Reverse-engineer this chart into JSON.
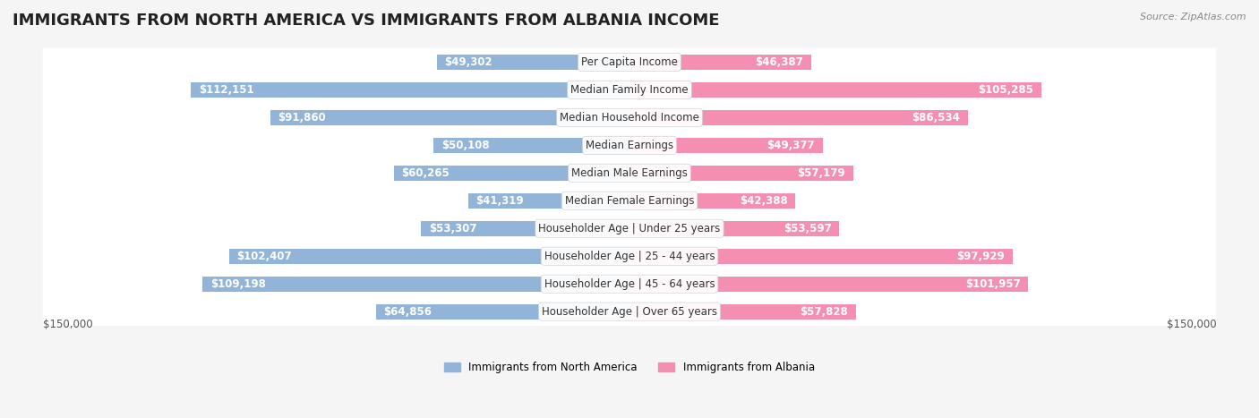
{
  "title": "IMMIGRANTS FROM NORTH AMERICA VS IMMIGRANTS FROM ALBANIA INCOME",
  "source": "Source: ZipAtlas.com",
  "categories": [
    "Per Capita Income",
    "Median Family Income",
    "Median Household Income",
    "Median Earnings",
    "Median Male Earnings",
    "Median Female Earnings",
    "Householder Age | Under 25 years",
    "Householder Age | 25 - 44 years",
    "Householder Age | 45 - 64 years",
    "Householder Age | Over 65 years"
  ],
  "left_values": [
    49302,
    112151,
    91860,
    50108,
    60265,
    41319,
    53307,
    102407,
    109198,
    64856
  ],
  "right_values": [
    46387,
    105285,
    86534,
    49377,
    57179,
    42388,
    53597,
    97929,
    101957,
    57828
  ],
  "left_labels": [
    "$49,302",
    "$112,151",
    "$91,860",
    "$50,108",
    "$60,265",
    "$41,319",
    "$53,307",
    "$102,407",
    "$109,198",
    "$64,856"
  ],
  "right_labels": [
    "$46,387",
    "$105,285",
    "$86,534",
    "$49,377",
    "$57,179",
    "$42,388",
    "$53,597",
    "$97,929",
    "$101,957",
    "$57,828"
  ],
  "left_color": "#92b4d8",
  "right_color": "#f48fb1",
  "left_legend": "Immigrants from North America",
  "right_legend": "Immigrants from Albania",
  "max_value": 150000,
  "bar_height": 0.55,
  "bg_color": "#f5f5f5",
  "row_bg_color": "#ffffff",
  "title_fontsize": 13,
  "label_fontsize": 8.5,
  "axis_label": "$150,000",
  "row_alt_color": "#f0f0f0"
}
